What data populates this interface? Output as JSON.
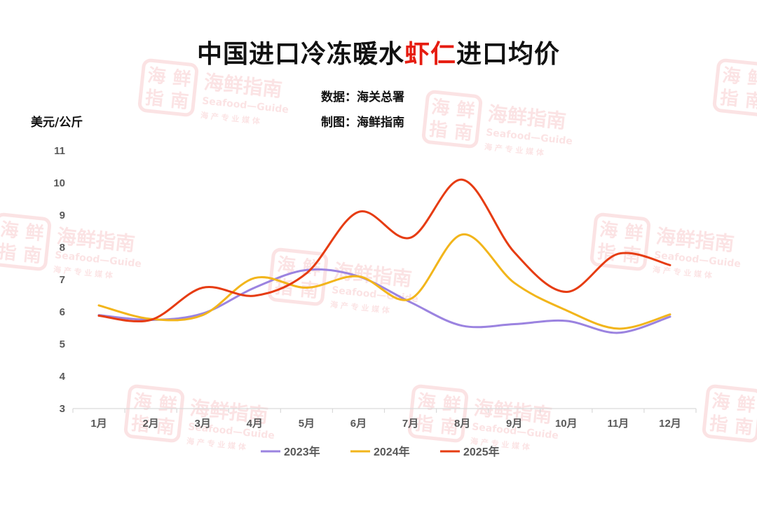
{
  "title": {
    "prefix": "中国进口冷冻暖水",
    "highlight": "虾仁",
    "suffix": "进口均价"
  },
  "meta": {
    "source": "数据：海关总署",
    "maker": "制图：海鲜指南"
  },
  "watermark": {
    "name": "海鲜指南",
    "en": "Seafood—Guide",
    "tagline": "海 产 专 业 媒 体",
    "logo_chars": [
      "海",
      "鲜",
      "指",
      "南"
    ]
  },
  "colors": {
    "2023": "#9b83e0",
    "2024": "#f2b51b",
    "2025": "#e63c12",
    "title_highlight": "#e61c10"
  },
  "chart_data": {
    "type": "line",
    "ylabel": "美元/公斤",
    "ylim": [
      3,
      11
    ],
    "yticks": [
      3,
      4,
      5,
      6,
      7,
      8,
      9,
      10,
      11
    ],
    "categories": [
      "1月",
      "2月",
      "3月",
      "4月",
      "5月",
      "6月",
      "7月",
      "8月",
      "9月",
      "10月",
      "11月",
      "12月"
    ],
    "legend_position": "bottom",
    "grid": false,
    "smooth": true,
    "series": [
      {
        "name": "2023年",
        "color": "#9b83e0",
        "values": [
          5.9,
          5.75,
          5.95,
          6.75,
          7.3,
          7.1,
          6.3,
          5.57,
          5.62,
          5.72,
          5.35,
          5.85
        ]
      },
      {
        "name": "2024年",
        "color": "#f2b51b",
        "values": [
          6.2,
          5.78,
          5.9,
          7.05,
          6.75,
          7.1,
          6.4,
          8.4,
          6.9,
          6.05,
          5.48,
          5.92
        ]
      },
      {
        "name": "2025年",
        "color": "#e63c12",
        "values": [
          5.88,
          5.75,
          6.75,
          6.5,
          7.2,
          9.1,
          8.3,
          10.1,
          7.85,
          6.62,
          7.8,
          7.45
        ]
      }
    ]
  }
}
